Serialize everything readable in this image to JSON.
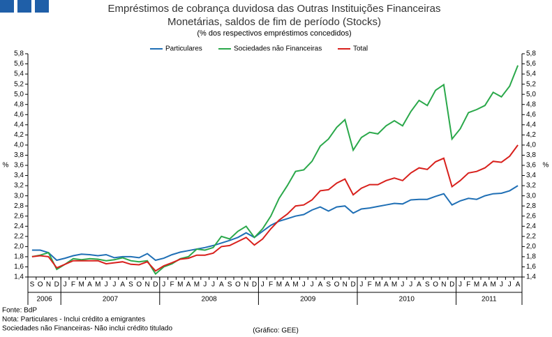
{
  "chart_data": {
    "type": "line",
    "title": "Empréstimos de cobrança duvidosa das Outras Instituições Financeiras",
    "title_line2": "Monetárias, saldos de fim de período (Stocks)",
    "subtitle": "(% dos respectivos empréstimos concedidos)",
    "y_label": "%",
    "y2_label": "%",
    "categories": [
      "S",
      "O",
      "N",
      "D",
      "J",
      "F",
      "M",
      "A",
      "M",
      "J",
      "J",
      "A",
      "S",
      "O",
      "N",
      "D",
      "J",
      "F",
      "M",
      "A",
      "M",
      "J",
      "J",
      "A",
      "S",
      "O",
      "N",
      "D",
      "J",
      "F",
      "M",
      "A",
      "M",
      "J",
      "J",
      "A",
      "S",
      "O",
      "N",
      "D",
      "J",
      "F",
      "M",
      "A",
      "M",
      "J",
      "J",
      "A",
      "S",
      "O",
      "N",
      "D",
      "J",
      "F",
      "M",
      "A",
      "M",
      "J",
      "J",
      "A"
    ],
    "years": [
      "2006",
      "2007",
      "2008",
      "2009",
      "2010",
      "2011"
    ],
    "series": [
      {
        "name": "Particulares",
        "color": "#1f6fb5",
        "values": [
          1.93,
          1.93,
          1.88,
          1.73,
          1.77,
          1.82,
          1.85,
          1.84,
          1.82,
          1.84,
          1.78,
          1.8,
          1.8,
          1.78,
          1.86,
          1.73,
          1.77,
          1.84,
          1.89,
          1.92,
          1.95,
          1.98,
          2.02,
          2.07,
          2.12,
          2.18,
          2.27,
          2.18,
          2.3,
          2.42,
          2.5,
          2.55,
          2.6,
          2.63,
          2.72,
          2.78,
          2.7,
          2.78,
          2.8,
          2.66,
          2.74,
          2.76,
          2.79,
          2.82,
          2.85,
          2.84,
          2.92,
          2.93,
          2.93,
          2.99,
          3.04,
          2.82,
          2.9,
          2.95,
          2.93,
          3.0,
          3.04,
          3.05,
          3.1,
          3.2
        ]
      },
      {
        "name": "Sociedades não Financeiras",
        "color": "#2aa84a",
        "values": [
          1.8,
          1.83,
          1.88,
          1.55,
          1.65,
          1.76,
          1.74,
          1.76,
          1.75,
          1.72,
          1.74,
          1.78,
          1.72,
          1.7,
          1.72,
          1.46,
          1.6,
          1.66,
          1.76,
          1.8,
          1.95,
          1.93,
          1.98,
          2.2,
          2.15,
          2.3,
          2.4,
          2.18,
          2.35,
          2.6,
          2.95,
          3.2,
          3.48,
          3.51,
          3.68,
          3.98,
          4.12,
          4.35,
          4.5,
          3.9,
          4.15,
          4.25,
          4.22,
          4.38,
          4.48,
          4.38,
          4.66,
          4.88,
          4.78,
          5.08,
          5.19,
          4.12,
          4.32,
          4.64,
          4.7,
          4.78,
          5.04,
          4.95,
          5.16,
          5.57
        ]
      },
      {
        "name": "Total",
        "color": "#d8201c",
        "values": [
          1.8,
          1.82,
          1.8,
          1.58,
          1.65,
          1.72,
          1.72,
          1.72,
          1.72,
          1.66,
          1.68,
          1.7,
          1.65,
          1.64,
          1.7,
          1.52,
          1.62,
          1.68,
          1.75,
          1.77,
          1.83,
          1.83,
          1.87,
          2.0,
          2.02,
          2.1,
          2.18,
          2.03,
          2.15,
          2.35,
          2.52,
          2.64,
          2.8,
          2.82,
          2.92,
          3.1,
          3.12,
          3.25,
          3.33,
          3.02,
          3.15,
          3.22,
          3.22,
          3.3,
          3.35,
          3.3,
          3.45,
          3.55,
          3.52,
          3.67,
          3.74,
          3.18,
          3.3,
          3.45,
          3.48,
          3.55,
          3.68,
          3.66,
          3.78,
          4.0
        ]
      }
    ],
    "ylim": [
      1.4,
      5.8
    ],
    "yticks": [
      {
        "value": 1.4,
        "label": "1,4"
      },
      {
        "value": 1.6,
        "label": "1,6"
      },
      {
        "value": 1.8,
        "label": "1,8"
      },
      {
        "value": 2.0,
        "label": "2,0"
      },
      {
        "value": 2.2,
        "label": "2,2"
      },
      {
        "value": 2.4,
        "label": "2,4"
      },
      {
        "value": 2.6,
        "label": "2,6"
      },
      {
        "value": 2.8,
        "label": "2,8"
      },
      {
        "value": 3.0,
        "label": "3,0"
      },
      {
        "value": 3.2,
        "label": "3,2"
      },
      {
        "value": 3.4,
        "label": "3,4"
      },
      {
        "value": 3.6,
        "label": "3,6"
      },
      {
        "value": 3.8,
        "label": "3,8"
      },
      {
        "value": 4.0,
        "label": "4,0"
      },
      {
        "value": 4.2,
        "label": "4,2"
      },
      {
        "value": 4.4,
        "label": "4,4"
      },
      {
        "value": 4.6,
        "label": "4,6"
      },
      {
        "value": 4.8,
        "label": "4,8"
      },
      {
        "value": 5.0,
        "label": "5,0"
      },
      {
        "value": 5.2,
        "label": "5,2"
      },
      {
        "value": 5.4,
        "label": "5,4"
      },
      {
        "value": 5.6,
        "label": "5,6"
      },
      {
        "value": 5.8,
        "label": "5,8"
      }
    ],
    "grid": false,
    "legend": "top",
    "notes": [
      "Fonte: BdP",
      "Nota: Particulares - Inclui crédito a emigrantes",
      "Sociedades não Financeiras- Não inclui crédito titulado"
    ],
    "credit": "(Gráfico: GEE)"
  }
}
